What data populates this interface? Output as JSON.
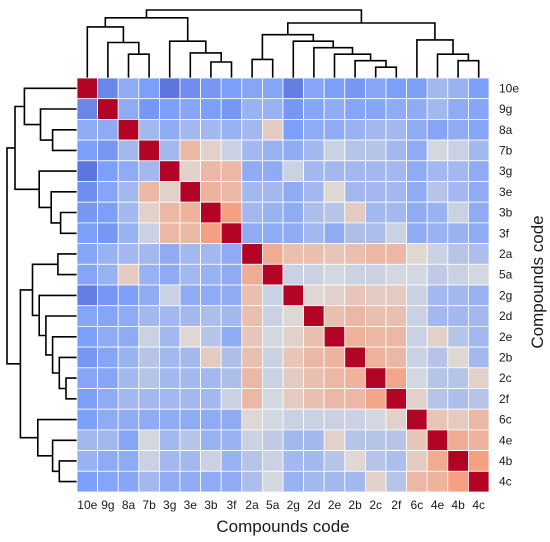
{
  "chart_data": {
    "type": "heatmap",
    "title": "",
    "xlabel": "Compounds code",
    "ylabel": "Compounds code",
    "labels": [
      "10e",
      "9g",
      "8a",
      "7b",
      "3g",
      "3e",
      "3b",
      "3f",
      "2a",
      "5a",
      "2g",
      "2d",
      "2e",
      "2b",
      "2c",
      "2f",
      "6c",
      "4e",
      "4b",
      "4c"
    ],
    "value_range": [
      -1,
      1
    ],
    "colormap": "coolwarm",
    "grid": true,
    "dendrograms": [
      "top",
      "left"
    ],
    "matrix": [
      [
        1.0,
        -0.65,
        -0.4,
        -0.5,
        -0.75,
        -0.6,
        -0.55,
        -0.5,
        -0.45,
        -0.45,
        -0.7,
        -0.45,
        -0.5,
        -0.55,
        -0.45,
        -0.5,
        -0.5,
        -0.3,
        -0.35,
        -0.5
      ],
      [
        -0.65,
        1.0,
        -0.4,
        -0.55,
        -0.5,
        -0.45,
        -0.5,
        -0.55,
        -0.35,
        -0.35,
        -0.55,
        -0.45,
        -0.4,
        -0.45,
        -0.45,
        -0.4,
        -0.4,
        -0.3,
        -0.4,
        -0.45
      ],
      [
        -0.4,
        -0.4,
        1.0,
        -0.3,
        -0.4,
        -0.3,
        -0.3,
        -0.35,
        -0.3,
        0.15,
        -0.5,
        -0.4,
        -0.4,
        -0.35,
        -0.3,
        -0.3,
        -0.4,
        -0.45,
        -0.4,
        -0.45
      ],
      [
        -0.5,
        -0.55,
        -0.3,
        1.0,
        -0.3,
        0.3,
        0.1,
        -0.1,
        -0.3,
        -0.35,
        -0.4,
        -0.3,
        -0.1,
        -0.2,
        -0.2,
        -0.3,
        -0.4,
        -0.05,
        -0.1,
        -0.3
      ],
      [
        -0.75,
        -0.5,
        -0.4,
        -0.3,
        1.0,
        0.1,
        0.3,
        0.3,
        -0.4,
        -0.4,
        -0.1,
        -0.3,
        -0.3,
        -0.3,
        -0.3,
        -0.3,
        -0.4,
        -0.3,
        -0.3,
        -0.4
      ],
      [
        -0.6,
        -0.45,
        -0.3,
        0.3,
        0.1,
        1.0,
        0.35,
        0.3,
        -0.3,
        -0.3,
        -0.4,
        -0.3,
        0.05,
        -0.3,
        -0.3,
        -0.3,
        -0.4,
        -0.2,
        -0.3,
        -0.4
      ],
      [
        -0.55,
        -0.5,
        -0.3,
        0.1,
        0.3,
        0.35,
        1.0,
        0.5,
        -0.3,
        -0.35,
        -0.4,
        -0.25,
        -0.2,
        0.15,
        -0.3,
        -0.3,
        -0.4,
        -0.35,
        -0.1,
        -0.4
      ],
      [
        -0.5,
        -0.55,
        -0.35,
        -0.1,
        0.3,
        0.3,
        0.5,
        1.0,
        -0.4,
        -0.4,
        -0.4,
        -0.3,
        -0.4,
        -0.25,
        -0.25,
        -0.1,
        -0.4,
        -0.35,
        -0.35,
        -0.4
      ],
      [
        -0.45,
        -0.35,
        -0.3,
        -0.3,
        -0.4,
        -0.3,
        -0.3,
        -0.4,
        1.0,
        0.4,
        0.25,
        0.25,
        0.2,
        0.25,
        0.3,
        0.3,
        0.05,
        -0.1,
        -0.2,
        -0.25
      ],
      [
        -0.45,
        -0.35,
        0.15,
        -0.35,
        -0.4,
        -0.3,
        -0.35,
        -0.4,
        0.4,
        1.0,
        -0.1,
        -0.1,
        -0.05,
        -0.1,
        -0.1,
        -0.05,
        -0.05,
        -0.15,
        -0.1,
        -0.05
      ],
      [
        -0.7,
        -0.55,
        -0.5,
        -0.4,
        -0.1,
        -0.4,
        -0.4,
        -0.4,
        0.25,
        -0.1,
        1.0,
        0.05,
        0.1,
        0.2,
        0.15,
        0.15,
        -0.1,
        -0.3,
        -0.3,
        -0.35
      ],
      [
        -0.45,
        -0.45,
        -0.4,
        -0.3,
        -0.3,
        -0.3,
        -0.25,
        -0.3,
        0.25,
        -0.1,
        0.05,
        1.0,
        0.25,
        0.3,
        0.25,
        0.25,
        -0.1,
        -0.3,
        -0.3,
        -0.3
      ],
      [
        -0.5,
        -0.4,
        -0.4,
        -0.1,
        -0.3,
        0.05,
        -0.2,
        -0.4,
        0.2,
        -0.05,
        0.1,
        0.25,
        1.0,
        0.35,
        0.3,
        0.3,
        -0.1,
        0.1,
        -0.2,
        -0.3
      ],
      [
        -0.55,
        -0.45,
        -0.35,
        -0.2,
        -0.3,
        -0.3,
        0.15,
        -0.25,
        0.25,
        -0.1,
        0.2,
        0.3,
        0.35,
        1.0,
        0.35,
        0.3,
        -0.1,
        -0.2,
        0.05,
        -0.3
      ],
      [
        -0.45,
        -0.45,
        -0.3,
        -0.2,
        -0.3,
        -0.3,
        -0.3,
        -0.25,
        0.3,
        -0.1,
        0.15,
        0.25,
        0.3,
        0.35,
        1.0,
        0.45,
        -0.05,
        -0.2,
        -0.2,
        0.1
      ],
      [
        -0.5,
        -0.4,
        -0.3,
        -0.3,
        -0.3,
        -0.3,
        -0.3,
        -0.1,
        0.3,
        -0.05,
        0.15,
        0.25,
        0.3,
        0.3,
        0.45,
        1.0,
        0.1,
        -0.2,
        -0.25,
        -0.2
      ],
      [
        -0.5,
        -0.4,
        -0.4,
        -0.4,
        -0.4,
        -0.4,
        -0.4,
        -0.4,
        0.05,
        -0.05,
        -0.1,
        -0.1,
        -0.1,
        -0.1,
        -0.05,
        0.1,
        1.0,
        0.2,
        0.15,
        0.3
      ],
      [
        -0.3,
        -0.3,
        -0.45,
        -0.05,
        -0.3,
        -0.2,
        -0.35,
        -0.35,
        -0.1,
        -0.15,
        -0.3,
        -0.3,
        0.1,
        -0.2,
        -0.2,
        -0.2,
        0.2,
        1.0,
        0.4,
        0.35
      ],
      [
        -0.35,
        -0.4,
        -0.4,
        -0.1,
        -0.3,
        -0.3,
        -0.1,
        -0.35,
        -0.2,
        -0.1,
        -0.3,
        -0.3,
        -0.2,
        0.05,
        -0.2,
        -0.25,
        0.15,
        0.4,
        1.0,
        0.5
      ],
      [
        -0.5,
        -0.45,
        -0.45,
        -0.3,
        -0.4,
        -0.4,
        -0.4,
        -0.4,
        -0.25,
        -0.05,
        -0.35,
        -0.3,
        -0.3,
        -0.3,
        0.1,
        -0.2,
        0.3,
        0.35,
        0.5,
        1.0
      ]
    ]
  }
}
